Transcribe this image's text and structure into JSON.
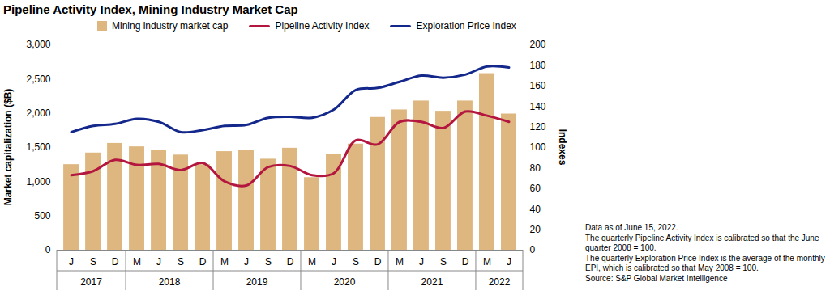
{
  "chart_data": {
    "type": "bar",
    "title": "Pipeline Activity Index, Mining Industry Market Cap",
    "y_label": "Market capitalization ($B)",
    "y2_label": "Indexes",
    "categories": [
      "J",
      "S",
      "D",
      "M",
      "J",
      "S",
      "D",
      "M",
      "J",
      "S",
      "D",
      "M",
      "J",
      "S",
      "D",
      "M",
      "J",
      "S",
      "D",
      "M",
      "J"
    ],
    "years": [
      "2017",
      "2017",
      "2017",
      "2018",
      "2018",
      "2018",
      "2018",
      "2019",
      "2019",
      "2019",
      "2019",
      "2020",
      "2020",
      "2020",
      "2020",
      "2021",
      "2021",
      "2021",
      "2021",
      "2022",
      "2022"
    ],
    "series": [
      {
        "name": "Mining industry market cap",
        "type": "bar",
        "color": "#DDB77F",
        "values": [
          1250,
          1420,
          1560,
          1510,
          1460,
          1390,
          1250,
          1440,
          1460,
          1330,
          1490,
          1060,
          1400,
          1550,
          1940,
          2050,
          2180,
          2030,
          2180,
          2580,
          1990
        ]
      },
      {
        "name": "Pipeline Activity Index",
        "type": "line",
        "axis": "y2",
        "color": "#B3163F",
        "values": [
          73,
          77,
          88,
          83,
          84,
          78,
          85,
          67,
          63,
          81,
          82,
          73,
          75,
          107,
          103,
          125,
          125,
          119,
          135,
          131,
          125
        ]
      },
      {
        "name": "Exploration Price Index",
        "type": "line",
        "axis": "y2",
        "color": "#14288C",
        "values": [
          115,
          121,
          123,
          128,
          125,
          115,
          117,
          121,
          122,
          129,
          130,
          129,
          137,
          156,
          158,
          164,
          170,
          168,
          171,
          179,
          178
        ]
      }
    ],
    "ylim": [
      0,
      3000
    ],
    "yticks": [
      0,
      500,
      {
        "value": 1000,
        "label": "1,000"
      },
      {
        "value": 1500,
        "label": "1,500"
      },
      {
        "value": 2000,
        "label": "2,000"
      },
      {
        "value": 2500,
        "label": "2,500"
      },
      {
        "value": 3000,
        "label": "3,000"
      }
    ],
    "y2lim": [
      0,
      200
    ],
    "y2ticks": [
      0,
      20,
      40,
      60,
      80,
      100,
      120,
      140,
      160,
      180,
      200
    ],
    "grid": false,
    "legend": "top",
    "notes": [
      "Data as of June 15, 2022.",
      "The quarterly Pipeline Activity Index is calibrated so that the June quarter 2008 = 100.",
      "The quarterly Exploration Price Index is the average of the monthly EPI, which is calibrated so that May 2008 = 100.",
      "Source: S&P Global Market Intelligence"
    ]
  }
}
